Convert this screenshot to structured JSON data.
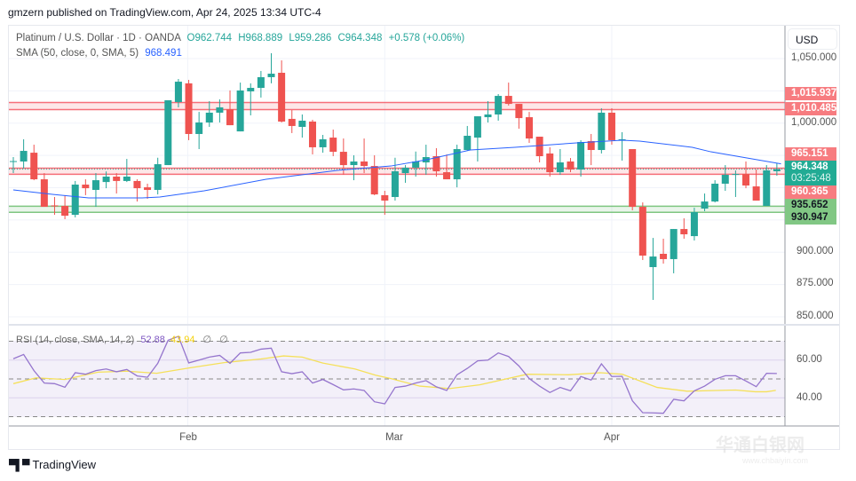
{
  "published": "gmzern published on TradingView.com, Apr 24, 2025 13:34 UTC-4",
  "symbol": {
    "title": "Platinum / U.S. Dollar · 1D · OANDA",
    "open": "O962.744",
    "high": "H968.889",
    "low": "L959.286",
    "close": "C964.348",
    "change": "+0.578 (+0.06%)"
  },
  "sma": {
    "label": "SMA (50, close, 0, SMA, 5)",
    "value": "968.491"
  },
  "rsi": {
    "label": "RSI (14, close, SMA, 14, 2)",
    "value": "52.88",
    "sma_value": "43.94",
    "extra1": "∅",
    "extra2": "∅"
  },
  "price_axis": {
    "currency": "USD",
    "ticks": [
      "1,050.000",
      "1,000.000",
      "900.000",
      "875.000",
      "850.000"
    ],
    "tags": {
      "r1": "1,015.937",
      "r2": "1,010.485",
      "r3": "965.151",
      "last": "964.348",
      "countdown": "03:25:48",
      "r4": "960.365",
      "g1": "935.652",
      "g2": "930.947"
    }
  },
  "rsi_axis": {
    "ticks": [
      "60.00",
      "40.00"
    ]
  },
  "time_axis": {
    "labels": [
      "Feb",
      "Mar",
      "Apr"
    ]
  },
  "brand": "TradingView",
  "watermark": {
    "title": "华通白银网",
    "url": "www.chbaiyin.com"
  },
  "colors": {
    "up": "#26a69a",
    "down": "#ef5350",
    "sma": "#2962ff",
    "rsi": "#7e57c2",
    "rsi_sma": "#f5e05a"
  },
  "chart_data": {
    "type": "candlestick",
    "ylim": [
      850,
      1050
    ],
    "zones": [
      {
        "type": "resistance",
        "from": 1010.485,
        "to": 1015.937
      },
      {
        "type": "resistance",
        "from": 960.365,
        "to": 965.151
      },
      {
        "type": "support",
        "from": 930.947,
        "to": 935.652
      }
    ],
    "last_price": 964.348,
    "month_starts": [
      {
        "label": "Feb",
        "index": 16.9
      },
      {
        "label": "Mar",
        "index": 36.0
      },
      {
        "label": "Apr",
        "index": 58.0
      }
    ],
    "ohlc": [
      [
        970.0,
        973.7,
        961.3,
        970.6
      ],
      [
        970.3,
        987.5,
        964.8,
        978.5
      ],
      [
        977.1,
        983.3,
        955.8,
        956.5
      ],
      [
        956.5,
        961.3,
        935.2,
        935.2
      ],
      [
        936.3,
        942.8,
        929.0,
        935.6
      ],
      [
        935.9,
        944.2,
        925.6,
        928.3
      ],
      [
        929.0,
        955.2,
        927.0,
        952.4
      ],
      [
        952.4,
        956.5,
        944.2,
        949.6
      ],
      [
        948.3,
        961.3,
        935.2,
        955.8
      ],
      [
        954.4,
        962.6,
        949.6,
        958.6
      ],
      [
        958.6,
        961.3,
        945.5,
        955.2
      ],
      [
        955.2,
        972.3,
        954.4,
        958.6
      ],
      [
        955.2,
        956.5,
        939.3,
        949.6
      ],
      [
        950.3,
        953.1,
        941.4,
        948.3
      ],
      [
        948.3,
        973.2,
        944.8,
        968.2
      ],
      [
        967.5,
        1017.7,
        967.5,
        1017.7
      ],
      [
        1016.3,
        1034.2,
        1012.2,
        1032.1
      ],
      [
        1030.8,
        1033.5,
        986.8,
        991.6
      ],
      [
        991.6,
        1008.7,
        979.9,
        1000.5
      ],
      [
        1000.5,
        1017.0,
        997.1,
        1008.1
      ],
      [
        1008.1,
        1018.4,
        1000.5,
        1012.2
      ],
      [
        1010.8,
        1025.3,
        998.4,
        998.4
      ],
      [
        993.6,
        1031.4,
        993.6,
        1025.3
      ],
      [
        1024.6,
        1030.8,
        1006.0,
        1027.3
      ],
      [
        1027.3,
        1040.4,
        1019.8,
        1035.6
      ],
      [
        1035.6,
        1054.1,
        1030.8,
        1038.3
      ],
      [
        1039.0,
        1048.6,
        1000.5,
        1001.2
      ],
      [
        1003.3,
        1010.1,
        992.3,
        997.8
      ],
      [
        997.1,
        1006.7,
        988.8,
        1001.9
      ],
      [
        1001.2,
        1002.6,
        975.8,
        981.3
      ],
      [
        981.3,
        990.9,
        977.1,
        987.5
      ],
      [
        988.8,
        995.0,
        974.4,
        977.8
      ],
      [
        977.8,
        988.1,
        960.0,
        967.5
      ],
      [
        967.5,
        975.1,
        955.8,
        970.3
      ],
      [
        970.3,
        988.1,
        961.3,
        966.8
      ],
      [
        966.8,
        975.1,
        944.2,
        944.8
      ],
      [
        944.2,
        947.6,
        929.0,
        940.0
      ],
      [
        942.8,
        973.2,
        940.0,
        962.7
      ],
      [
        961.3,
        967.5,
        953.8,
        965.5
      ],
      [
        965.5,
        978.0,
        958.6,
        970.3
      ],
      [
        969.6,
        983.3,
        960.0,
        973.7
      ],
      [
        974.4,
        980.6,
        958.6,
        962.7
      ],
      [
        962.0,
        975.8,
        956.5,
        956.5
      ],
      [
        956.5,
        983.3,
        950.3,
        979.9
      ],
      [
        979.2,
        997.8,
        978.5,
        990.2
      ],
      [
        988.8,
        1005.3,
        970.3,
        1005.3
      ],
      [
        1004.6,
        1017.0,
        1000.5,
        1006.7
      ],
      [
        1006.7,
        1022.5,
        1001.9,
        1021.1
      ],
      [
        1021.1,
        1031.4,
        1013.6,
        1014.9
      ],
      [
        1014.9,
        1014.9,
        995.7,
        1003.9
      ],
      [
        1004.6,
        1008.7,
        984.7,
        988.1
      ],
      [
        989.5,
        989.5,
        969.6,
        974.4
      ],
      [
        976.5,
        981.3,
        958.6,
        962.0
      ],
      [
        962.0,
        979.9,
        960.0,
        969.6
      ],
      [
        970.3,
        973.0,
        962.0,
        964.1
      ],
      [
        964.1,
        986.8,
        958.6,
        985.4
      ],
      [
        986.1,
        991.6,
        967.5,
        979.2
      ],
      [
        979.2,
        1011.5,
        976.5,
        1008.1
      ],
      [
        1008.1,
        1011.5,
        983.3,
        986.8
      ],
      [
        986.8,
        993.0,
        971.0,
        987.5
      ],
      [
        979.9,
        979.9,
        932.5,
        935.2
      ],
      [
        935.2,
        938.6,
        894.0,
        897.4
      ],
      [
        888.5,
        911.1,
        863.1,
        896.7
      ],
      [
        898.8,
        910.5,
        891.2,
        894.7
      ],
      [
        894.7,
        918.0,
        883.7,
        918.0
      ],
      [
        918.0,
        926.3,
        910.5,
        913.9
      ],
      [
        912.5,
        934.5,
        909.1,
        931.1
      ],
      [
        933.8,
        945.5,
        931.8,
        939.3
      ],
      [
        939.3,
        955.8,
        938.6,
        953.1
      ],
      [
        953.1,
        967.5,
        947.6,
        960.0
      ],
      [
        960.0,
        963.4,
        942.8,
        960.6
      ],
      [
        960.6,
        970.3,
        949.6,
        951.7
      ],
      [
        951.0,
        964.1,
        940.0,
        940.0
      ],
      [
        935.9,
        967.5,
        935.9,
        963.4
      ],
      [
        962.744,
        968.889,
        959.286,
        964.348
      ]
    ],
    "sma50": [
      [
        0,
        948.3
      ],
      [
        3.9,
        944.8
      ],
      [
        7.3,
        942.1
      ],
      [
        12.5,
        942.1
      ],
      [
        14.2,
        942.8
      ],
      [
        18.5,
        947.6
      ],
      [
        24.5,
        956.5
      ],
      [
        31.4,
        963.4
      ],
      [
        36.6,
        966.8
      ],
      [
        40,
        971.6
      ],
      [
        44.3,
        979.2
      ],
      [
        48.6,
        981.3
      ],
      [
        54.6,
        984.7
      ],
      [
        59,
        986.8
      ],
      [
        60.7,
        986.1
      ],
      [
        65.8,
        981.3
      ],
      [
        67.6,
        977.8
      ],
      [
        74.4,
        968.5
      ]
    ],
    "rsi_ylim": [
      30,
      70
    ],
    "rsi_levels": [
      70,
      50,
      30
    ],
    "rsi_values": [
      60.7,
      63.0,
      54.4,
      47.8,
      47.5,
      45.6,
      53.3,
      52.5,
      54.4,
      55.3,
      53.8,
      55.0,
      51.6,
      50.9,
      58.3,
      70.5,
      72.6,
      58.5,
      60.0,
      61.6,
      62.5,
      58.3,
      63.8,
      64.1,
      65.8,
      66.3,
      53.8,
      52.8,
      53.8,
      47.8,
      49.7,
      47.0,
      44.2,
      44.7,
      43.9,
      37.9,
      36.8,
      45.5,
      46.2,
      47.8,
      49.1,
      45.8,
      43.9,
      52.2,
      55.6,
      59.6,
      60.0,
      63.8,
      61.9,
      56.9,
      50.2,
      46.2,
      42.8,
      45.5,
      43.7,
      51.3,
      49.4,
      58.0,
      51.3,
      51.4,
      38.4,
      32.1,
      32.0,
      31.8,
      39.2,
      38.4,
      43.7,
      46.2,
      49.8,
      51.7,
      51.7,
      48.9,
      45.9,
      53.0,
      52.88
    ],
    "rsi_sma": [
      [
        0,
        47.5
      ],
      [
        2.2,
        50.6
      ],
      [
        5.0,
        49.7
      ],
      [
        8.2,
        53.6
      ],
      [
        11.0,
        54.1
      ],
      [
        13.9,
        53.0
      ],
      [
        17.1,
        55.9
      ],
      [
        20.5,
        58.7
      ],
      [
        24.0,
        60.6
      ],
      [
        26.2,
        62.2
      ],
      [
        28.0,
        61.6
      ],
      [
        30.0,
        58.4
      ],
      [
        33.1,
        55.3
      ],
      [
        35.1,
        52.0
      ],
      [
        36.6,
        50.2
      ],
      [
        39.4,
        46.2
      ],
      [
        42.3,
        44.9
      ],
      [
        45.2,
        46.9
      ],
      [
        49.8,
        52.5
      ],
      [
        53.8,
        52.2
      ],
      [
        56.9,
        53.3
      ],
      [
        59.0,
        52.5
      ],
      [
        62.4,
        45.5
      ],
      [
        65.3,
        43.5
      ],
      [
        68.1,
        43.9
      ],
      [
        70.0,
        44.1
      ],
      [
        71.9,
        43.2
      ],
      [
        73.0,
        43.2
      ],
      [
        73.9,
        43.94
      ]
    ]
  }
}
